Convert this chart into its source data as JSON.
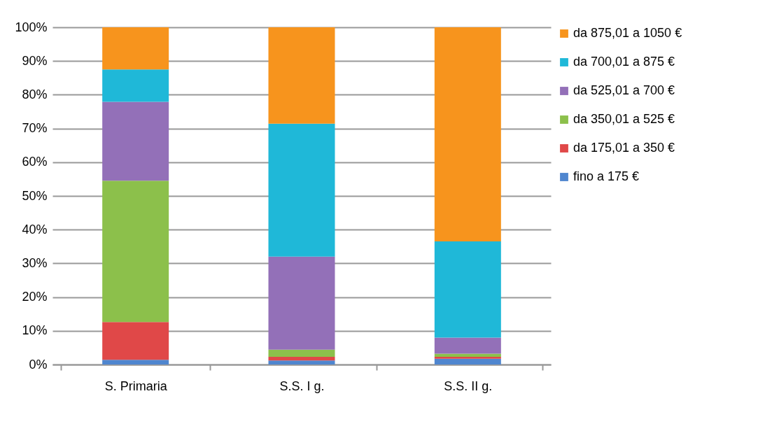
{
  "chart_data": {
    "type": "bar",
    "stacked": true,
    "categories": [
      "S. Primaria",
      "S.S. I g.",
      "S.S. II g."
    ],
    "series": [
      {
        "name": "fino a 175 €",
        "color": "#4f86cf",
        "values": [
          1.4,
          1.2,
          1.7
        ]
      },
      {
        "name": "da 175,01 a 350 €",
        "color": "#e04848",
        "values": [
          11.2,
          1.1,
          0.6
        ]
      },
      {
        "name": "da 350,01 a 525 €",
        "color": "#8cc04b",
        "values": [
          41.9,
          2.1,
          0.9
        ]
      },
      {
        "name": "da 525,01 a 700 €",
        "color": "#9370b8",
        "values": [
          23.4,
          27.6,
          4.8
        ]
      },
      {
        "name": "da 700,01 a 875 €",
        "color": "#1fb8d8",
        "values": [
          9.6,
          39.4,
          28.5
        ]
      },
      {
        "name": "da 875,01 a 1050 €",
        "color": "#f7941d",
        "values": [
          12.5,
          28.6,
          63.5
        ]
      }
    ],
    "ylim": [
      0,
      100
    ],
    "yticks": [
      {
        "value": 0,
        "label": "0%"
      },
      {
        "value": 10,
        "label": "10%"
      },
      {
        "value": 20,
        "label": "20%"
      },
      {
        "value": 30,
        "label": "30%"
      },
      {
        "value": 40,
        "label": "40%"
      },
      {
        "value": 50,
        "label": "50%"
      },
      {
        "value": 60,
        "label": "60%"
      },
      {
        "value": 70,
        "label": "70%"
      },
      {
        "value": 80,
        "label": "80%"
      },
      {
        "value": 90,
        "label": "90%"
      },
      {
        "value": 100,
        "label": "100%"
      }
    ],
    "grid": "y",
    "legend": "right"
  }
}
